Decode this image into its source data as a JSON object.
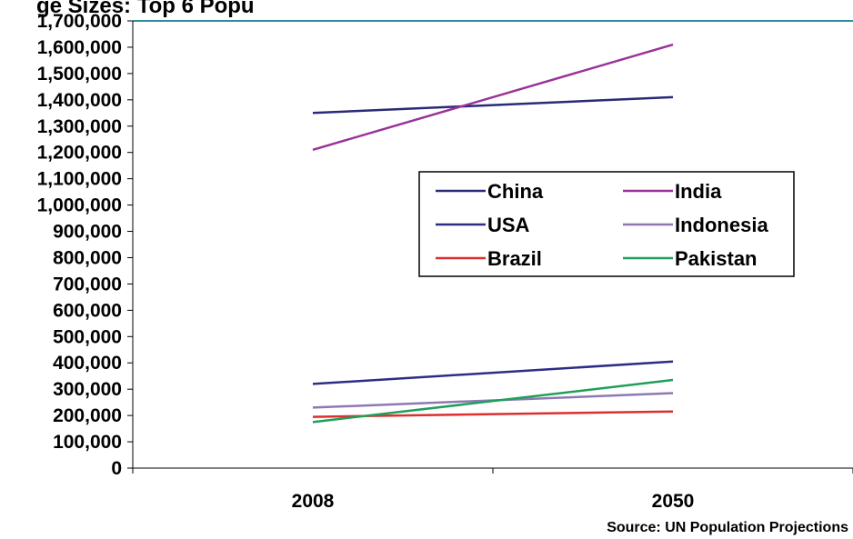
{
  "chart_data": {
    "type": "line",
    "title": "ge Sizes: Top 6 Popu",
    "source": "Source: UN Population Projections",
    "categories": [
      "2008",
      "2050"
    ],
    "ylim": [
      0,
      1700000
    ],
    "ytick_step": 100000,
    "grid": false,
    "legend_position": "right",
    "series": [
      {
        "name": "China",
        "color": "#2b2a77",
        "values": [
          1350000,
          1410000
        ]
      },
      {
        "name": "India",
        "color": "#993399",
        "values": [
          1210000,
          1610000
        ]
      },
      {
        "name": "USA",
        "color": "#2e2d86",
        "values": [
          320000,
          405000
        ]
      },
      {
        "name": "Indonesia",
        "color": "#8e78b4",
        "values": [
          230000,
          285000
        ]
      },
      {
        "name": "Brazil",
        "color": "#dc2f2f",
        "values": [
          195000,
          215000
        ]
      },
      {
        "name": "Pakistan",
        "color": "#1fa05a",
        "values": [
          175000,
          335000
        ]
      }
    ],
    "colors": {
      "top_border": "#2e8fa0",
      "axis": "#000000",
      "legend_border": "#000000"
    }
  }
}
